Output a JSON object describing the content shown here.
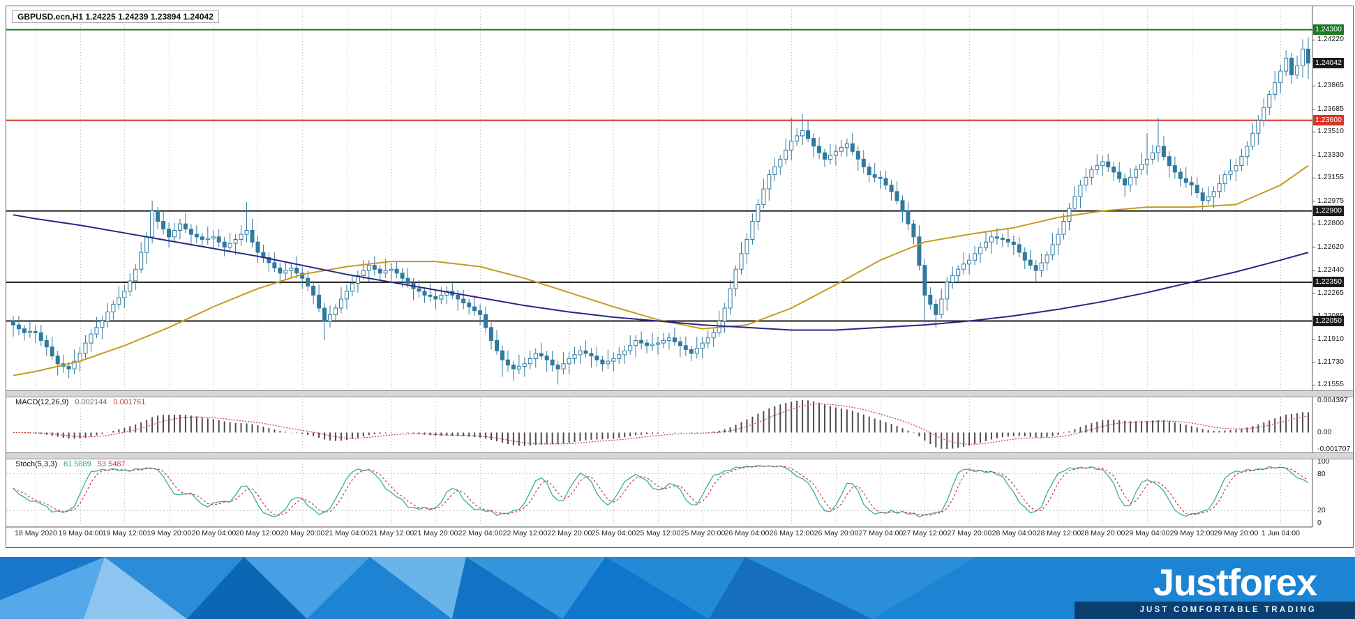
{
  "chart_data": [
    {
      "type": "candlestick",
      "title": "GBPUSD.ecn,H1 1.24225 1.24239 1.23894 1.24042",
      "symbol": "GBPUSD.ecn",
      "timeframe": "H1",
      "x_labels": [
        "18 May 2020",
        "19 May 04:00",
        "19 May 12:00",
        "19 May 20:00",
        "20 May 04:00",
        "20 May 12:00",
        "20 May 20:00",
        "21 May 04:00",
        "21 May 12:00",
        "21 May 20:00",
        "22 May 04:00",
        "22 May 12:00",
        "22 May 20:00",
        "25 May 04:00",
        "25 May 12:00",
        "25 May 20:00",
        "26 May 04:00",
        "26 May 12:00",
        "26 May 20:00",
        "27 May 04:00",
        "27 May 12:00",
        "27 May 20:00",
        "28 May 04:00",
        "28 May 12:00",
        "28 May 20:00",
        "29 May 04:00",
        "29 May 12:00",
        "29 May 20:00",
        "1 Jun 04:00"
      ],
      "x_first_index": 4,
      "x_label_step": 8,
      "open_first": 1.2205,
      "closes": [
        1.2202,
        1.2199,
        1.2196,
        1.2197,
        1.2196,
        1.219,
        1.2185,
        1.2178,
        1.2172,
        1.217,
        1.2168,
        1.2174,
        1.218,
        1.2188,
        1.2195,
        1.22,
        1.2205,
        1.2212,
        1.2218,
        1.2223,
        1.2228,
        1.2236,
        1.2245,
        1.2258,
        1.227,
        1.229,
        1.2282,
        1.2276,
        1.227,
        1.2275,
        1.228,
        1.2276,
        1.2272,
        1.227,
        1.2268,
        1.2269,
        1.227,
        1.2266,
        1.2262,
        1.2265,
        1.2268,
        1.2272,
        1.2275,
        1.2266,
        1.2258,
        1.2254,
        1.225,
        1.2246,
        1.2242,
        1.2244,
        1.2246,
        1.2242,
        1.2238,
        1.2232,
        1.2225,
        1.2215,
        1.2205,
        1.221,
        1.2215,
        1.2222,
        1.2228,
        1.2234,
        1.224,
        1.2244,
        1.2248,
        1.2245,
        1.2242,
        1.2244,
        1.2245,
        1.2242,
        1.2238,
        1.2234,
        1.223,
        1.2228,
        1.2225,
        1.2224,
        1.2222,
        1.2225,
        1.2228,
        1.2225,
        1.2222,
        1.2219,
        1.2216,
        1.2213,
        1.221,
        1.22,
        1.219,
        1.2182,
        1.2175,
        1.2171,
        1.2168,
        1.217,
        1.2172,
        1.2176,
        1.218,
        1.2178,
        1.2175,
        1.2171,
        1.2168,
        1.2172,
        1.2176,
        1.2179,
        1.2182,
        1.218,
        1.2178,
        1.2175,
        1.2172,
        1.2174,
        1.2176,
        1.2179,
        1.2182,
        1.2186,
        1.219,
        1.2188,
        1.2186,
        1.2187,
        1.2188,
        1.219,
        1.2192,
        1.2189,
        1.2186,
        1.2183,
        1.218,
        1.2184,
        1.2188,
        1.2192,
        1.2196,
        1.2205,
        1.2215,
        1.223,
        1.2245,
        1.2257,
        1.2268,
        1.2282,
        1.2295,
        1.2307,
        1.2318,
        1.2324,
        1.233,
        1.2337,
        1.2344,
        1.2348,
        1.2352,
        1.2346,
        1.234,
        1.2335,
        1.233,
        1.2333,
        1.2336,
        1.2339,
        1.2342,
        1.2336,
        1.233,
        1.2324,
        1.2318,
        1.2316,
        1.2315,
        1.231,
        1.2305,
        1.2298,
        1.229,
        1.228,
        1.227,
        1.2248,
        1.2225,
        1.2218,
        1.221,
        1.2222,
        1.2235,
        1.224,
        1.2245,
        1.2249,
        1.2252,
        1.2257,
        1.2262,
        1.2266,
        1.227,
        1.2269,
        1.2268,
        1.2266,
        1.2264,
        1.2258,
        1.2252,
        1.2248,
        1.2244,
        1.225,
        1.2256,
        1.2264,
        1.2272,
        1.2282,
        1.2292,
        1.2301,
        1.231,
        1.2316,
        1.2322,
        1.2325,
        1.2328,
        1.2324,
        1.232,
        1.2315,
        1.231,
        1.2316,
        1.2322,
        1.2326,
        1.233,
        1.2335,
        1.234,
        1.2332,
        1.2325,
        1.232,
        1.2315,
        1.2312,
        1.231,
        1.2304,
        1.2298,
        1.2301,
        1.2305,
        1.2311,
        1.2318,
        1.2321,
        1.2325,
        1.2332,
        1.234,
        1.235,
        1.236,
        1.237,
        1.238,
        1.2389,
        1.2398,
        1.2408,
        1.2395,
        1.2402,
        1.2415,
        1.24042
      ],
      "wick_cycle": [
        0.0004,
        0.0007,
        0.0003,
        0.0009,
        0.0005,
        0.0006,
        0.0004,
        0.0008
      ],
      "extra_wicks": {
        "10": {
          "l": 1.2161
        },
        "25": {
          "h": 1.2298
        },
        "42": {
          "h": 1.2297
        },
        "56": {
          "l": 1.219
        },
        "88": {
          "l": 1.2162
        },
        "90": {
          "l": 1.2159
        },
        "98": {
          "l": 1.2156
        },
        "140": {
          "h": 1.2362
        },
        "142": {
          "h": 1.2365
        },
        "164": {
          "l": 1.2203
        },
        "166": {
          "l": 1.22
        },
        "204": {
          "h": 1.235
        },
        "206": {
          "h": 1.2362
        },
        "230": {
          "l": 1.23894
        },
        "232": {
          "h": 1.24225
        },
        "233": {
          "h": 1.2424,
          "l": 1.2392
        }
      },
      "y_axis": {
        "top_price": 1.2447,
        "bottom_price": 1.2152,
        "ticks": [
          "1.24220",
          "1.23865",
          "1.23685",
          "1.23510",
          "1.23330",
          "1.23155",
          "1.22975",
          "1.22800",
          "1.22620",
          "1.22440",
          "1.22265",
          "1.22085",
          "1.21910",
          "1.21730",
          "1.21555"
        ]
      },
      "current_price": "1.24042",
      "hlines": [
        {
          "price": 1.243,
          "label": "1.24300",
          "color_key": "level_green",
          "width": 2
        },
        {
          "price": 1.236,
          "label": "1.23600",
          "color_key": "level_red",
          "width": 2
        },
        {
          "price": 1.229,
          "label": "1.22900",
          "color_key": "level_black",
          "width": 2
        },
        {
          "price": 1.2235,
          "label": "1.22350",
          "color_key": "level_black",
          "width": 2
        },
        {
          "price": 1.2205,
          "label": "1.22050",
          "color_key": "level_black",
          "width": 2
        }
      ],
      "ma_lines": [
        {
          "name": "ma-fast-gold",
          "color": "#c79a1f",
          "waypoints": [
            [
              0,
              1.2163
            ],
            [
              4,
              1.2166
            ],
            [
              12,
              1.2174
            ],
            [
              20,
              1.2186
            ],
            [
              28,
              1.22
            ],
            [
              36,
              1.2216
            ],
            [
              44,
              1.223
            ],
            [
              52,
              1.2241
            ],
            [
              60,
              1.2247
            ],
            [
              68,
              1.2251
            ],
            [
              76,
              1.2251
            ],
            [
              84,
              1.2247
            ],
            [
              92,
              1.2238
            ],
            [
              100,
              1.2227
            ],
            [
              108,
              1.2216
            ],
            [
              116,
              1.2206
            ],
            [
              124,
              1.2199
            ],
            [
              132,
              1.2202
            ],
            [
              140,
              1.2215
            ],
            [
              148,
              1.2233
            ],
            [
              156,
              1.2252
            ],
            [
              164,
              1.2266
            ],
            [
              172,
              1.2272
            ],
            [
              180,
              1.2277
            ],
            [
              188,
              1.2285
            ],
            [
              196,
              1.229
            ],
            [
              204,
              1.2293
            ],
            [
              212,
              1.2293
            ],
            [
              220,
              1.2295
            ],
            [
              228,
              1.231
            ],
            [
              233,
              1.2325
            ]
          ]
        },
        {
          "name": "ma-slow-navy",
          "color": "#2b2586",
          "waypoints": [
            [
              0,
              1.2287
            ],
            [
              4,
              1.2284
            ],
            [
              12,
              1.2279
            ],
            [
              20,
              1.2273
            ],
            [
              28,
              1.2267
            ],
            [
              36,
              1.2261
            ],
            [
              44,
              1.2255
            ],
            [
              52,
              1.2248
            ],
            [
              60,
              1.2241
            ],
            [
              68,
              1.2235
            ],
            [
              76,
              1.2229
            ],
            [
              84,
              1.2223
            ],
            [
              92,
              1.2217
            ],
            [
              100,
              1.2212
            ],
            [
              108,
              1.2208
            ],
            [
              116,
              1.2205
            ],
            [
              124,
              1.2202
            ],
            [
              132,
              1.22
            ],
            [
              140,
              1.2198
            ],
            [
              148,
              1.2198
            ],
            [
              156,
              1.22
            ],
            [
              164,
              1.2202
            ],
            [
              172,
              1.2205
            ],
            [
              180,
              1.2209
            ],
            [
              188,
              1.2214
            ],
            [
              196,
              1.222
            ],
            [
              204,
              1.2227
            ],
            [
              212,
              1.2235
            ],
            [
              220,
              1.2243
            ],
            [
              228,
              1.2252
            ],
            [
              233,
              1.2258
            ]
          ]
        }
      ]
    },
    {
      "type": "macd",
      "label": "MACD(12,26,9)",
      "value_main": "0.002144",
      "value_signal": "0.001761",
      "params": {
        "fast": 12,
        "slow": 26,
        "signal": 9
      },
      "axis_labels": {
        "max": "0.004397",
        "zero": "0.00",
        "min": "-0.001707"
      }
    },
    {
      "type": "stochastic",
      "label": "Stoch(5,3,3)",
      "value_main": "61.5889",
      "value_signal": "53.5487",
      "params": {
        "k": 5,
        "slowing": 3,
        "d": 3
      },
      "levels": [
        80,
        20
      ],
      "axis_labels": [
        "100",
        "80",
        "20",
        "0"
      ]
    }
  ],
  "colors": {
    "candle": "#30799f",
    "candle_up_fill": "#ffffff",
    "grid": "#bdbdbd",
    "level_green": "#1d7a24",
    "level_red": "#d93425",
    "level_black": "#1a1a1a",
    "current_price_bg": "#1a1a1a",
    "macd_hist": "#4d4d4d",
    "signal_red": "#cf3a3a",
    "stoch_k": "#45b1a8"
  },
  "footer": {
    "logo_text": "Justforex",
    "tagline": "JUST COMFORTABLE TRADING",
    "brand_blue": "#0d7fd8",
    "brand_dark": "#0a3f72"
  }
}
